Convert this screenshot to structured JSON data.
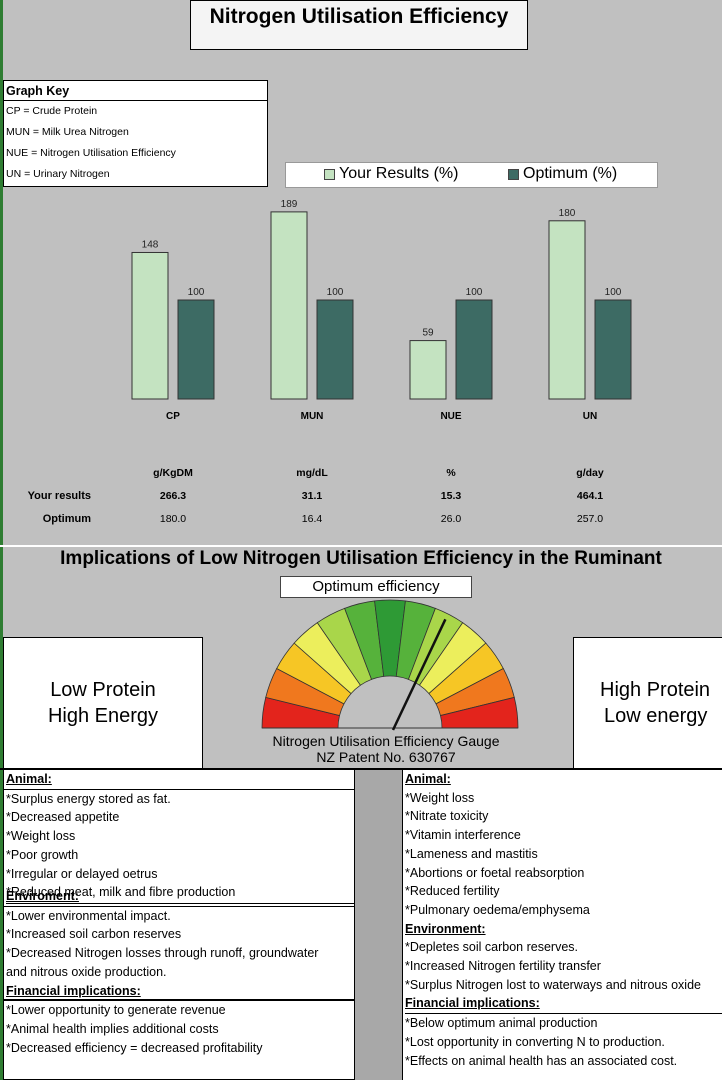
{
  "title": "Nitrogen Utilisation Efficiency",
  "graph_key": {
    "heading": "Graph Key",
    "items": [
      "CP = Crude Protein",
      "MUN = Milk Urea Nitrogen",
      "NUE = Nitrogen Utilisation Efficiency",
      "UN = Urinary Nitrogen"
    ]
  },
  "colors": {
    "your_results": "#c4e3c1",
    "optimum": "#3d6b64",
    "background": "#c0c0c0"
  },
  "chart_data": {
    "type": "bar",
    "categories": [
      "CP",
      "MUN",
      "NUE",
      "UN"
    ],
    "series": [
      {
        "name": "Your Results (%)",
        "values": [
          148,
          189,
          59,
          180
        ]
      },
      {
        "name": "Optimum (%)",
        "values": [
          100,
          100,
          100,
          100
        ]
      }
    ],
    "ylim": [
      0,
      200
    ],
    "grid": false,
    "legend": "top"
  },
  "table": {
    "units": [
      "g/KgDM",
      "mg/dL",
      "%",
      "g/day"
    ],
    "rows": [
      {
        "label": "Your results",
        "values": [
          "266.3",
          "31.1",
          "15.3",
          "464.1"
        ]
      },
      {
        "label": "Optimum",
        "values": [
          "180.0",
          "16.4",
          "26.0",
          "257.0"
        ]
      }
    ]
  },
  "implications": {
    "title": "Implications of Low Nitrogen Utilisation Efficiency in the Ruminant",
    "optimum_label": "Optimum   efficiency",
    "left_box": [
      "Low Protein",
      "High Energy"
    ],
    "right_box": [
      "High Protein",
      "Low energy"
    ],
    "gauge_caption": [
      "Nitrogen Utilisation Efficiency Gauge",
      "NZ Patent No. 630767"
    ]
  },
  "left_column": {
    "animal_heading": "Animal:",
    "animal": [
      "*Surplus energy stored as fat.",
      "*Decreased appetite",
      "*Weight loss",
      "*Poor growth",
      "*Irregular or delayed oetrus",
      "*Reduced meat, milk and fibre production"
    ],
    "env_heading": "Enviroment:",
    "env": [
      "*Lower environmental impact.",
      "*Increased soil carbon reserves",
      "*Decreased Nitrogen losses through runoff, groundwater",
      "and nitrous oxide production."
    ],
    "fin_heading": "Financial implications:",
    "fin": [
      "*Lower opportunity to generate revenue",
      "*Animal health implies additional costs",
      "*Decreased efficiency = decreased profitability"
    ]
  },
  "right_column": {
    "animal_heading": "Animal:",
    "animal": [
      "*Weight loss",
      "*Nitrate toxicity",
      "*Vitamin interference",
      "*Lameness and mastitis",
      "*Abortions or foetal reabsorption",
      "*Reduced fertility",
      "*Pulmonary oedema/emphysema"
    ],
    "env_heading": "Environment:",
    "env": [
      "*Depletes soil carbon reserves.",
      "*Increased Nitrogen fertility transfer",
      "*Surplus Nitrogen lost to waterways and nitrous oxide"
    ],
    "fin_heading": "Financial implications:",
    "fin": [
      "*Below optimum animal production",
      "*Lost opportunity in converting N to production.",
      "*Effects on animal health has an associated cost."
    ]
  }
}
